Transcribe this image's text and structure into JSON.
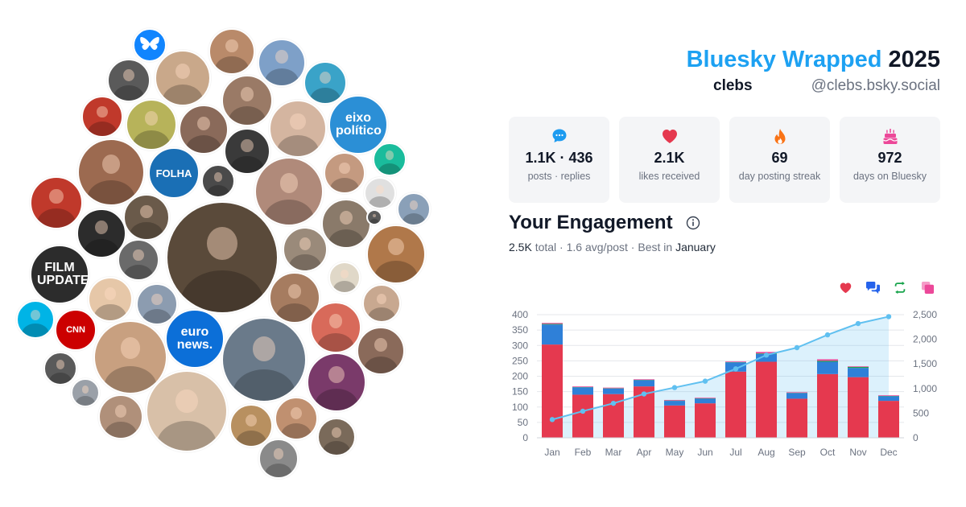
{
  "header": {
    "title_brand": "Bluesky Wrapped",
    "title_year": "2025",
    "display_name": "clebs",
    "handle": "@clebs.bsky.social"
  },
  "stats": [
    {
      "icon": "speech-bubble-icon",
      "value": "1.1K · 436",
      "label": "posts · replies",
      "color": "#1d9bf0"
    },
    {
      "icon": "heart-icon",
      "value": "2.1K",
      "label": "likes received",
      "color": "#e5394f"
    },
    {
      "icon": "flame-icon",
      "value": "69",
      "label": "day posting streak",
      "color": "#f97316"
    },
    {
      "icon": "cake-icon",
      "value": "972",
      "label": "days on Bluesky",
      "color": "#ec4899"
    }
  ],
  "engagement": {
    "title": "Your Engagement",
    "total": "2.5K",
    "total_word": "total",
    "avg": "1.6 avg/post",
    "best_prefix": "Best in",
    "best_month": "January",
    "legend": [
      {
        "name": "likes",
        "icon": "heart-icon",
        "color": "#e5394f"
      },
      {
        "name": "replies",
        "icon": "replies-icon",
        "color": "#2563eb"
      },
      {
        "name": "reposts",
        "icon": "repost-icon",
        "color": "#16a34a"
      },
      {
        "name": "quotes",
        "icon": "quote-icon",
        "color": "#ec4899"
      }
    ]
  },
  "bubbles": [
    {
      "label": "",
      "icon": "butterfly-icon",
      "bg": "#1185fe"
    },
    {
      "label": "",
      "bg": "#b98a6a"
    },
    {
      "label": "",
      "bg": "#7ea0c8"
    },
    {
      "label": "",
      "bg": "#5a5a5a"
    },
    {
      "label": "",
      "bg": "#c9a88a"
    },
    {
      "label": "",
      "bg": "#3aa3c8"
    },
    {
      "label": "",
      "bg": "#c0392b"
    },
    {
      "label": "",
      "bg": "#b7b35a"
    },
    {
      "label": "",
      "bg": "#8a6a5a"
    },
    {
      "label": "",
      "bg": "#9a7a66"
    },
    {
      "label": "",
      "bg": "#d4b5a0"
    },
    {
      "label": "eixo político",
      "bg": "#2b8fd6"
    },
    {
      "label": "",
      "bg": "#3a3a3a"
    },
    {
      "label": "",
      "bg": "#1abc9c"
    },
    {
      "label": "",
      "bg": "#9c6a50"
    },
    {
      "label": "FOLHA",
      "bg": "#1a6fb5"
    },
    {
      "label": "",
      "bg": "#4a4a4a"
    },
    {
      "label": "",
      "bg": "#b08a7a"
    },
    {
      "label": "",
      "bg": "#c49a80"
    },
    {
      "label": "",
      "bg": "#e0e0e0"
    },
    {
      "label": "",
      "bg": "#8aa0b8"
    },
    {
      "label": "",
      "bg": "#c0392b"
    },
    {
      "label": "",
      "bg": "#2c2c2c"
    },
    {
      "label": "",
      "bg": "#6a5a4a"
    },
    {
      "label": "",
      "bg": "#5a4a3a"
    },
    {
      "label": "",
      "bg": "#8a7a6a"
    },
    {
      "label": "",
      "bg": "#b0784a"
    },
    {
      "label": "",
      "bg": "#6a6a6a"
    },
    {
      "label": "",
      "bg": "#9a8a7a"
    },
    {
      "label": "FILM UPDATES",
      "bg": "#2c2c2c"
    },
    {
      "label": "",
      "bg": "#e0d8c8"
    },
    {
      "label": "",
      "bg": "#e6c7a8"
    },
    {
      "label": "",
      "bg": "#8c9cb0"
    },
    {
      "label": "",
      "bg": "#a67c60"
    },
    {
      "label": "",
      "bg": "#c8a890"
    },
    {
      "label": "",
      "bg": "#00b4e6"
    },
    {
      "label": "CNN",
      "bg": "#cc0000"
    },
    {
      "label": "",
      "bg": "#c8a080"
    },
    {
      "label": "euro news.",
      "bg": "#0c6fd8"
    },
    {
      "label": "",
      "bg": "#6a7a8a"
    },
    {
      "label": "",
      "bg": "#d86a5a"
    },
    {
      "label": "",
      "bg": "#8a6a5a"
    },
    {
      "label": "",
      "bg": "#5a5a5a"
    },
    {
      "label": "",
      "bg": "#9aa0a8"
    },
    {
      "label": "",
      "bg": "#b0907a"
    },
    {
      "label": "",
      "bg": "#d8c0a8"
    },
    {
      "label": "",
      "bg": "#b89060"
    },
    {
      "label": "",
      "bg": "#c09070"
    },
    {
      "label": "",
      "bg": "#7a3a6a"
    },
    {
      "label": "",
      "bg": "#7a6a5a"
    },
    {
      "label": "",
      "bg": "#8a8a8a"
    },
    {
      "label": "",
      "bg": "#5a5a5a"
    }
  ],
  "chart_data": {
    "type": "bar",
    "categories": [
      "Jan",
      "Feb",
      "Mar",
      "Apr",
      "May",
      "Jun",
      "Jul",
      "Aug",
      "Sep",
      "Oct",
      "Nov",
      "Dec"
    ],
    "stacked": true,
    "series": [
      {
        "name": "likes",
        "color": "#e5394f",
        "values": [
          303,
          140,
          142,
          167,
          105,
          112,
          215,
          247,
          127,
          207,
          197,
          120
        ]
      },
      {
        "name": "replies",
        "color": "#2f80d8",
        "values": [
          65,
          24,
          18,
          20,
          15,
          15,
          30,
          25,
          18,
          40,
          30,
          15
        ]
      },
      {
        "name": "reposts",
        "color": "#16a34a",
        "values": [
          2,
          1,
          1,
          1,
          1,
          1,
          1,
          2,
          1,
          3,
          3,
          1
        ]
      },
      {
        "name": "quotes",
        "color": "#ec4899",
        "values": [
          3,
          2,
          2,
          2,
          2,
          2,
          2,
          5,
          2,
          5,
          2,
          2
        ]
      },
      {
        "name": "cumulative",
        "color": "#60c0f0",
        "type": "area",
        "axis": "right",
        "values": [
          370,
          540,
          700,
          890,
          1020,
          1150,
          1400,
          1680,
          1830,
          2090,
          2320,
          2460
        ]
      }
    ],
    "yticks_left": [
      "0",
      "50",
      "100",
      "150",
      "200",
      "250",
      "300",
      "350",
      "400"
    ],
    "yticks_right": [
      "0",
      "500",
      "1,000",
      "1,500",
      "2,000",
      "2,500"
    ],
    "ylim": [
      0,
      400
    ],
    "ylim_right": [
      0,
      2500
    ],
    "grid": true
  }
}
